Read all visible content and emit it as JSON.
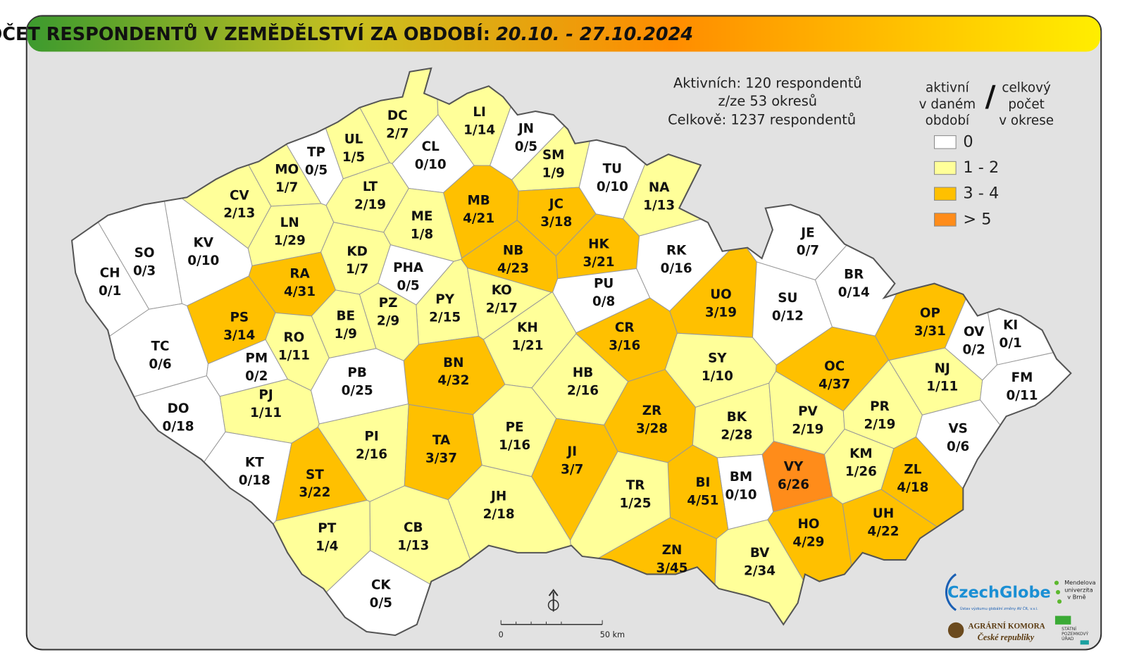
{
  "header": {
    "title": "POČET RESPONDENTŮ V ZEMĚDĚLSTVÍ ZA OBDOBÍ:",
    "period": "20.10. - 27.10.2024"
  },
  "summary": [
    "Aktivních: 120 respondentů",
    "z/ze 53 okresů",
    "Celkově: 1237 respondentů"
  ],
  "legend": {
    "left": [
      "aktivní",
      "v daném",
      "období"
    ],
    "separator": "/",
    "right": [
      "celkový",
      "počet",
      "v okrese"
    ],
    "items": [
      {
        "label": "0",
        "color": "#ffffff"
      },
      {
        "label": "1 - 2",
        "color": "#ffff99"
      },
      {
        "label": "3 - 4",
        "color": "#ffc000"
      },
      {
        "label": "> 5",
        "color": "#ff8c1a"
      }
    ]
  },
  "districts": [
    {
      "code": "DC",
      "label": "2/7",
      "color": "#ffff99"
    },
    {
      "code": "LI",
      "label": "1/14",
      "color": "#ffff99"
    },
    {
      "code": "JN",
      "label": "0/5",
      "color": "#ffffff"
    },
    {
      "code": "UL",
      "label": "1/5",
      "color": "#ffff99"
    },
    {
      "code": "TP",
      "label": "0/5",
      "color": "#ffffff"
    },
    {
      "code": "CL",
      "label": "0/10",
      "color": "#ffffff"
    },
    {
      "code": "SM",
      "label": "1/9",
      "color": "#ffff99"
    },
    {
      "code": "TU",
      "label": "0/10",
      "color": "#ffffff"
    },
    {
      "code": "NA",
      "label": "1/13",
      "color": "#ffff99"
    },
    {
      "code": "MO",
      "label": "1/7",
      "color": "#ffff99"
    },
    {
      "code": "CV",
      "label": "2/13",
      "color": "#ffff99"
    },
    {
      "code": "LT",
      "label": "2/19",
      "color": "#ffff99"
    },
    {
      "code": "MB",
      "label": "4/21",
      "color": "#ffc000"
    },
    {
      "code": "JC",
      "label": "3/18",
      "color": "#ffc000"
    },
    {
      "code": "ME",
      "label": "1/8",
      "color": "#ffff99"
    },
    {
      "code": "LN",
      "label": "1/29",
      "color": "#ffff99"
    },
    {
      "code": "KV",
      "label": "0/10",
      "color": "#ffffff"
    },
    {
      "code": "SO",
      "label": "0/3",
      "color": "#ffffff"
    },
    {
      "code": "HK",
      "label": "3/21",
      "color": "#ffc000"
    },
    {
      "code": "NB",
      "label": "4/23",
      "color": "#ffc000"
    },
    {
      "code": "RK",
      "label": "0/16",
      "color": "#ffffff"
    },
    {
      "code": "JE",
      "label": "0/7",
      "color": "#ffffff"
    },
    {
      "code": "CH",
      "label": "0/1",
      "color": "#ffffff"
    },
    {
      "code": "KD",
      "label": "1/7",
      "color": "#ffff99"
    },
    {
      "code": "RA",
      "label": "4/31",
      "color": "#ffc000"
    },
    {
      "code": "PHA",
      "label": "0/5",
      "color": "#ffffff"
    },
    {
      "code": "BR",
      "label": "0/14",
      "color": "#ffffff"
    },
    {
      "code": "PU",
      "label": "0/8",
      "color": "#ffffff"
    },
    {
      "code": "UO",
      "label": "3/19",
      "color": "#ffc000"
    },
    {
      "code": "SU",
      "label": "0/12",
      "color": "#ffffff"
    },
    {
      "code": "PS",
      "label": "3/14",
      "color": "#ffc000"
    },
    {
      "code": "PY",
      "label": "2/15",
      "color": "#ffff99"
    },
    {
      "code": "PZ",
      "label": "2/9",
      "color": "#ffff99"
    },
    {
      "code": "KO",
      "label": "2/17",
      "color": "#ffff99"
    },
    {
      "code": "BE",
      "label": "1/9",
      "color": "#ffff99"
    },
    {
      "code": "OP",
      "label": "3/31",
      "color": "#ffc000"
    },
    {
      "code": "KI",
      "label": "0/1",
      "color": "#ffffff"
    },
    {
      "code": "OV",
      "label": "0/2",
      "color": "#ffffff"
    },
    {
      "code": "TC",
      "label": "0/6",
      "color": "#ffffff"
    },
    {
      "code": "RO",
      "label": "1/11",
      "color": "#ffff99"
    },
    {
      "code": "KH",
      "label": "1/21",
      "color": "#ffff99"
    },
    {
      "code": "CR",
      "label": "3/16",
      "color": "#ffc000"
    },
    {
      "code": "PM",
      "label": "0/2",
      "color": "#ffffff"
    },
    {
      "code": "SY",
      "label": "1/10",
      "color": "#ffff99"
    },
    {
      "code": "BN",
      "label": "4/32",
      "color": "#ffc000"
    },
    {
      "code": "OC",
      "label": "4/37",
      "color": "#ffc000"
    },
    {
      "code": "NJ",
      "label": "1/11",
      "color": "#ffff99"
    },
    {
      "code": "FM",
      "label": "0/11",
      "color": "#ffffff"
    },
    {
      "code": "PB",
      "label": "0/25",
      "color": "#ffffff"
    },
    {
      "code": "HB",
      "label": "2/16",
      "color": "#ffff99"
    },
    {
      "code": "PJ",
      "label": "1/11",
      "color": "#ffff99"
    },
    {
      "code": "DO",
      "label": "0/18",
      "color": "#ffffff"
    },
    {
      "code": "ZR",
      "label": "3/28",
      "color": "#ffc000"
    },
    {
      "code": "BK",
      "label": "2/28",
      "color": "#ffff99"
    },
    {
      "code": "PV",
      "label": "2/19",
      "color": "#ffff99"
    },
    {
      "code": "PR",
      "label": "2/19",
      "color": "#ffff99"
    },
    {
      "code": "VS",
      "label": "0/6",
      "color": "#ffffff"
    },
    {
      "code": "PE",
      "label": "1/16",
      "color": "#ffff99"
    },
    {
      "code": "PI",
      "label": "2/16",
      "color": "#ffff99"
    },
    {
      "code": "TA",
      "label": "3/37",
      "color": "#ffc000"
    },
    {
      "code": "JI",
      "label": "3/7",
      "color": "#ffc000"
    },
    {
      "code": "KM",
      "label": "1/26",
      "color": "#ffff99"
    },
    {
      "code": "KT",
      "label": "0/18",
      "color": "#ffffff"
    },
    {
      "code": "VY",
      "label": "6/26",
      "color": "#ff8c1a"
    },
    {
      "code": "ZL",
      "label": "4/18",
      "color": "#ffc000"
    },
    {
      "code": "BM",
      "label": "0/10",
      "color": "#ffffff"
    },
    {
      "code": "BI",
      "label": "4/51",
      "color": "#ffc000"
    },
    {
      "code": "ST",
      "label": "3/22",
      "color": "#ffc000"
    },
    {
      "code": "TR",
      "label": "1/25",
      "color": "#ffff99"
    },
    {
      "code": "JH",
      "label": "2/18",
      "color": "#ffff99"
    },
    {
      "code": "UH",
      "label": "4/22",
      "color": "#ffc000"
    },
    {
      "code": "HO",
      "label": "4/29",
      "color": "#ffc000"
    },
    {
      "code": "PT",
      "label": "1/4",
      "color": "#ffff99"
    },
    {
      "code": "CB",
      "label": "1/13",
      "color": "#ffff99"
    },
    {
      "code": "ZN",
      "label": "3/45",
      "color": "#ffc000"
    },
    {
      "code": "BV",
      "label": "2/34",
      "color": "#ffff99"
    },
    {
      "code": "CK",
      "label": "0/5",
      "color": "#ffffff"
    }
  ],
  "scale": {
    "start": "0",
    "end": "50 km"
  },
  "logos": {
    "czechglobe": "CzechGlobe",
    "czechglobe_sub": "Ústav výzkumu globální změny AV ČR, v.v.i.",
    "mendelu": [
      "Mendelova",
      "univerzita",
      "v Brně"
    ],
    "komora": [
      "AGRÁRNÍ KOMORA",
      "České republiky"
    ],
    "spu": [
      "STÁTNÍ",
      "POZEMKOVÝ",
      "ÚŘAD"
    ]
  }
}
